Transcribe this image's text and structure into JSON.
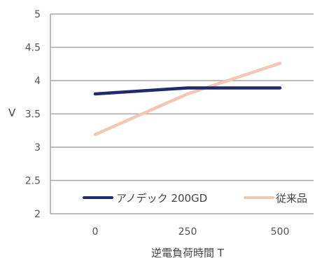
{
  "chart_data": {
    "type": "line",
    "title": "",
    "xlabel": "逆電負荷時間 T",
    "ylabel": "V",
    "x": [
      0,
      250,
      500
    ],
    "x_tick_labels": [
      "0",
      "250",
      "500"
    ],
    "y_ticks": [
      2,
      2.5,
      3,
      3.5,
      4,
      4.5,
      5
    ],
    "y_tick_labels": [
      "2",
      "2.5",
      "3",
      "3.5",
      "4",
      "4.5",
      "5"
    ],
    "ylim": [
      2,
      5
    ],
    "grid": "horizontal",
    "legend_position": "bottom-right",
    "series": [
      {
        "name": "アノデック 200GD",
        "values": [
          3.8,
          3.89,
          3.89
        ],
        "color": "#1f2a6b"
      },
      {
        "name": "従来品",
        "values": [
          3.19,
          3.8,
          4.26
        ],
        "color": "#f2c8b2"
      }
    ]
  }
}
